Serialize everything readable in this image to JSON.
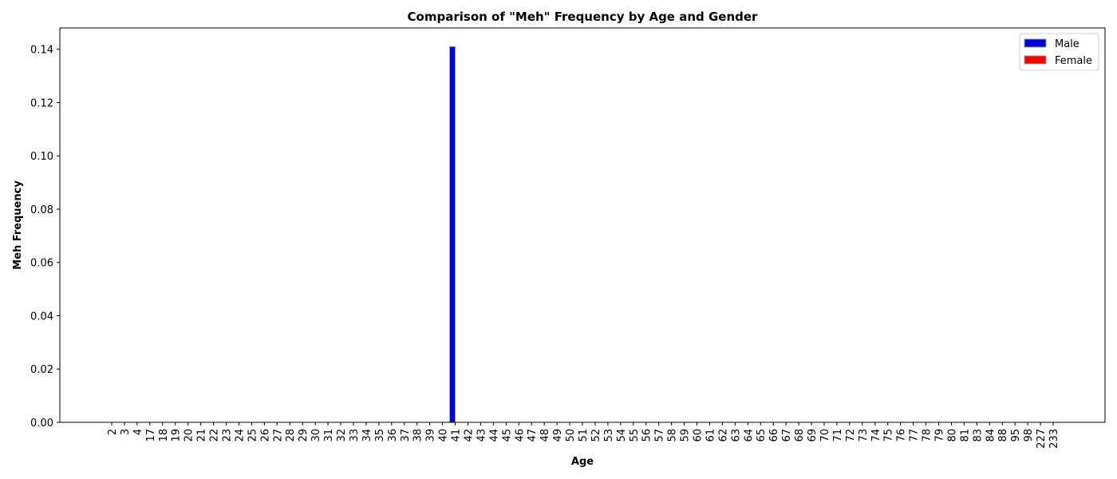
{
  "chart_data": {
    "type": "bar",
    "title": "Comparison of \"Meh\" Frequency by Age and Gender",
    "xlabel": "Age",
    "ylabel": "Meh Frequency",
    "ylim": [
      0,
      0.148
    ],
    "yticks": [
      "0.00",
      "0.02",
      "0.04",
      "0.06",
      "0.08",
      "0.10",
      "0.12",
      "0.14"
    ],
    "ytick_values": [
      0,
      0.02,
      0.04,
      0.06,
      0.08,
      0.1,
      0.12,
      0.14
    ],
    "categories": [
      "2",
      "3",
      "4",
      "17",
      "18",
      "19",
      "20",
      "21",
      "22",
      "23",
      "24",
      "25",
      "26",
      "27",
      "28",
      "29",
      "30",
      "31",
      "32",
      "33",
      "34",
      "35",
      "36",
      "37",
      "38",
      "39",
      "40",
      "41",
      "42",
      "43",
      "44",
      "45",
      "46",
      "47",
      "48",
      "49",
      "50",
      "51",
      "52",
      "53",
      "54",
      "55",
      "56",
      "57",
      "58",
      "59",
      "60",
      "61",
      "62",
      "63",
      "64",
      "65",
      "66",
      "67",
      "68",
      "69",
      "70",
      "71",
      "72",
      "73",
      "74",
      "75",
      "76",
      "77",
      "78",
      "79",
      "80",
      "81",
      "83",
      "84",
      "88",
      "95",
      "98",
      "227",
      "233"
    ],
    "series": [
      {
        "name": "Male",
        "color": "#0000dd",
        "values": [
          0,
          0,
          0,
          0,
          0,
          0,
          0,
          0,
          0,
          0,
          0,
          0,
          0,
          0,
          0,
          0,
          0,
          0,
          0,
          0,
          0,
          0,
          0,
          0,
          0,
          0,
          0,
          0.141,
          0,
          0,
          0,
          0,
          0,
          0,
          0,
          0,
          0,
          0,
          0,
          0,
          0,
          0,
          0,
          0,
          0,
          0,
          0,
          0,
          0,
          0,
          0,
          0,
          0,
          0,
          0,
          0,
          0,
          0,
          0,
          0,
          0,
          0,
          0,
          0,
          0,
          0,
          0,
          0,
          0,
          0,
          0,
          0,
          0,
          0,
          0
        ]
      },
      {
        "name": "Female",
        "color": "#ff0000",
        "values": [
          0,
          0,
          0,
          0,
          0,
          0,
          0,
          0,
          0,
          0,
          0,
          0,
          0,
          0,
          0,
          0,
          0,
          0,
          0,
          0,
          0,
          0,
          0,
          0,
          0,
          0,
          0,
          0,
          0,
          0,
          0,
          0,
          0,
          0,
          0,
          0,
          0,
          0,
          0,
          0,
          0,
          0,
          0,
          0,
          0,
          0,
          0,
          0,
          0,
          0,
          0,
          0,
          0,
          0,
          0,
          0,
          0,
          0,
          0,
          0,
          0,
          0,
          0,
          0,
          0,
          0,
          0,
          0,
          0,
          0,
          0,
          0,
          0,
          0,
          0
        ]
      }
    ],
    "legend_position": "top-right",
    "grid": false
  }
}
